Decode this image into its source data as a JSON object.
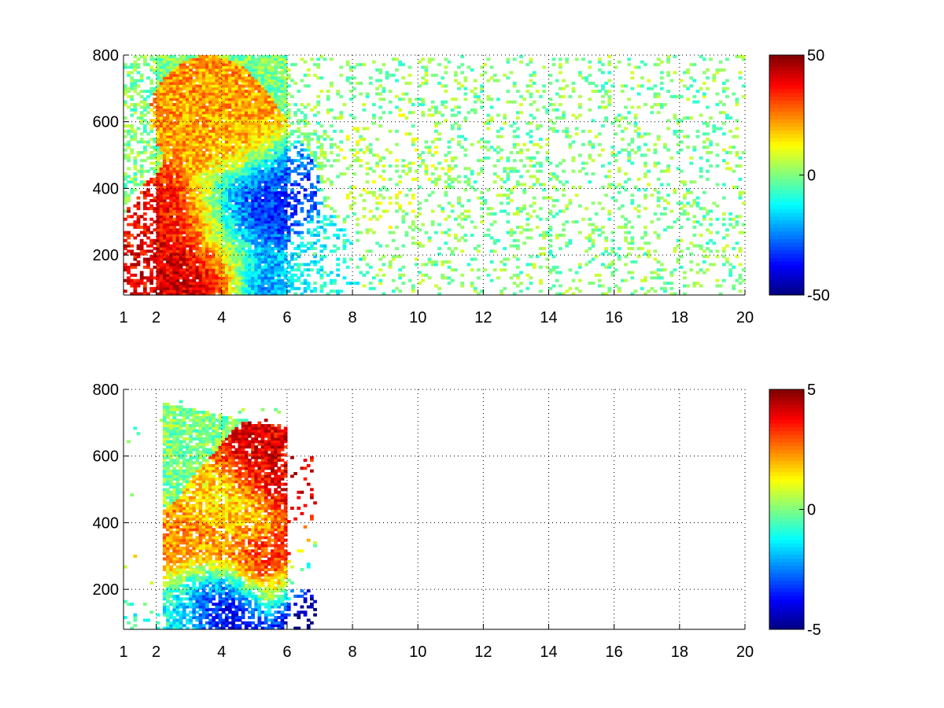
{
  "chart_data": [
    {
      "type": "heatmap",
      "title": "",
      "xlabel": "",
      "ylabel": "",
      "xlim": [
        1,
        20
      ],
      "ylim": [
        80,
        800
      ],
      "xticks": [
        1,
        2,
        4,
        6,
        8,
        10,
        12,
        14,
        16,
        18,
        20
      ],
      "yticks": [
        200,
        400,
        600,
        800
      ],
      "grid": true,
      "colormap": "jet",
      "clim": [
        -50,
        50
      ],
      "colorbar_ticks": [
        -50,
        0,
        50
      ],
      "features": [
        {
          "x": 2.8,
          "y": 280,
          "value": 38
        },
        {
          "x": 3.5,
          "y": 125,
          "value": 42
        },
        {
          "x": 2.7,
          "y": 125,
          "value": 40
        },
        {
          "x": 4.4,
          "y": 200,
          "value": 30
        },
        {
          "x": 3.6,
          "y": 310,
          "value": 30
        },
        {
          "x": 4.2,
          "y": 310,
          "value": -35
        },
        {
          "x": 5.0,
          "y": 290,
          "value": -40
        },
        {
          "x": 5.2,
          "y": 400,
          "value": -30
        },
        {
          "x": 5.0,
          "y": 160,
          "value": -35
        },
        {
          "x": 3.6,
          "y": 620,
          "value": 22
        },
        {
          "x": 4.4,
          "y": 520,
          "value": 20
        },
        {
          "x": 6.5,
          "y": 160,
          "value": -10
        },
        {
          "x": 9.2,
          "y": 450,
          "value": 5
        }
      ]
    },
    {
      "type": "heatmap",
      "title": "",
      "xlabel": "",
      "ylabel": "",
      "xlim": [
        1,
        20
      ],
      "ylim": [
        80,
        800
      ],
      "xticks": [
        1,
        2,
        4,
        6,
        8,
        10,
        12,
        14,
        16,
        18,
        20
      ],
      "yticks": [
        200,
        400,
        600,
        800
      ],
      "grid": true,
      "colormap": "jet",
      "clim": [
        -5,
        5
      ],
      "colorbar_ticks": [
        -5,
        0,
        5
      ],
      "features": [
        {
          "x": 3.0,
          "y": 280,
          "value": 2.5
        },
        {
          "x": 4.4,
          "y": 300,
          "value": 3
        },
        {
          "x": 5.4,
          "y": 240,
          "value": 4
        },
        {
          "x": 5.6,
          "y": 550,
          "value": 4
        },
        {
          "x": 3.6,
          "y": 180,
          "value": -4
        },
        {
          "x": 4.5,
          "y": 150,
          "value": -4.5
        },
        {
          "x": 6.6,
          "y": 160,
          "value": -5
        },
        {
          "x": 2.8,
          "y": 120,
          "value": -1
        },
        {
          "x": 4.5,
          "y": 430,
          "value": 1.5
        }
      ]
    }
  ]
}
